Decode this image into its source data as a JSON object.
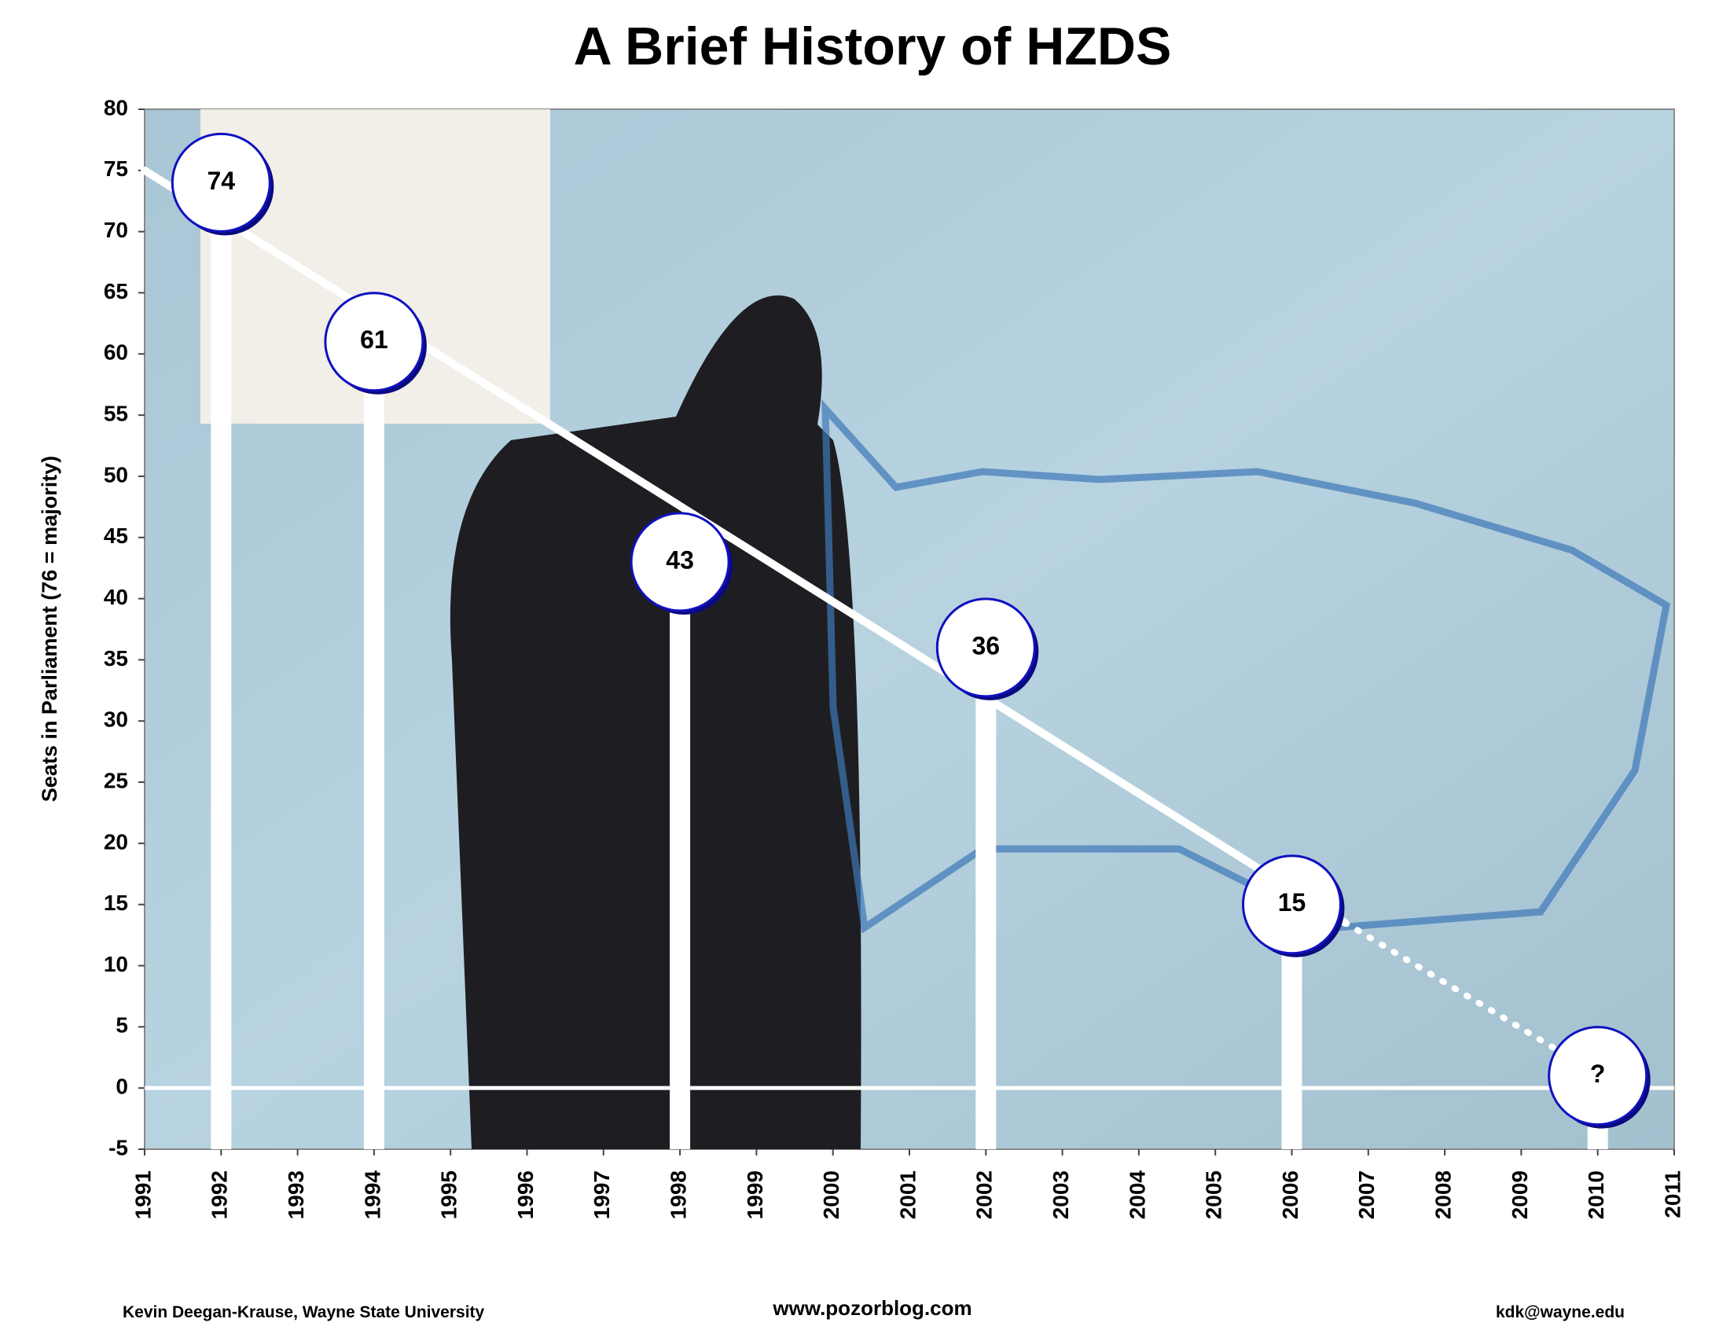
{
  "chart_data": {
    "type": "lollipop",
    "title": "A Brief History of HZDS",
    "y_label": "Seats in Parliament (76 = majority)",
    "x": [
      1992,
      1994,
      1998,
      2002,
      2006,
      2010
    ],
    "values": [
      74,
      61,
      43,
      36,
      15,
      1
    ],
    "value_labels": [
      "74",
      "61",
      "43",
      "36",
      "15",
      "?"
    ],
    "color": "#ffffff",
    "marker_edge_color": "#1010c0",
    "xlim": [
      1991,
      2011
    ],
    "xticks": [
      1991,
      1992,
      1993,
      1994,
      1995,
      1996,
      1997,
      1998,
      1999,
      2000,
      2001,
      2002,
      2003,
      2004,
      2005,
      2006,
      2007,
      2008,
      2009,
      2010,
      2011
    ],
    "ylim": [
      -5,
      80
    ],
    "yticks": [
      -5,
      0,
      5,
      10,
      15,
      20,
      25,
      30,
      35,
      40,
      45,
      50,
      55,
      60,
      65,
      70,
      75,
      80
    ],
    "trend": [
      {
        "style": "solid",
        "x": [
          1991,
          2006.7
        ],
        "values": [
          75,
          13.5
        ]
      },
      {
        "style": "dotted",
        "x": [
          2006.7,
          2009.5
        ],
        "values": [
          13.5,
          3
        ]
      }
    ],
    "footer": {
      "left": "Kevin Deegan-Krause, Wayne State University",
      "center": "www.pozorblog.com",
      "right": "kdk@wayne.edu"
    }
  }
}
